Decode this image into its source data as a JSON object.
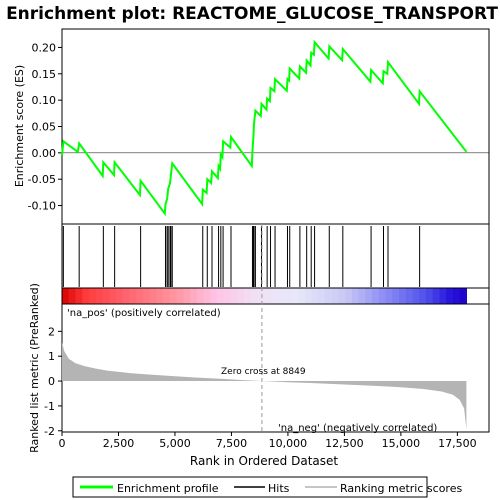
{
  "chart_data": {
    "type": "line",
    "title": "Enrichment plot: REACTOME_GLUCOSE_TRANSPORT",
    "top_panel": {
      "ylabel": "Enrichment score (ES)",
      "ylim": [
        -0.135,
        0.235
      ],
      "yticks": [
        -0.1,
        -0.05,
        0.0,
        0.05,
        0.1,
        0.15,
        0.2
      ],
      "ytick_labels": [
        "-0.10",
        "-0.05",
        "0.00",
        "0.05",
        "0.10",
        "0.15",
        "0.20"
      ],
      "line_color": "#00ff00",
      "es_points": [
        [
          0,
          -0.005
        ],
        [
          60,
          0.022
        ],
        [
          700,
          0.002
        ],
        [
          760,
          0.018
        ],
        [
          1800,
          -0.044
        ],
        [
          1830,
          -0.018
        ],
        [
          2300,
          -0.042
        ],
        [
          2330,
          -0.018
        ],
        [
          3450,
          -0.08
        ],
        [
          3480,
          -0.053
        ],
        [
          4550,
          -0.115
        ],
        [
          4580,
          -0.097
        ],
        [
          4650,
          -0.088
        ],
        [
          4700,
          -0.068
        ],
        [
          4780,
          -0.058
        ],
        [
          4820,
          -0.042
        ],
        [
          4880,
          -0.02
        ],
        [
          6200,
          -0.097
        ],
        [
          6230,
          -0.07
        ],
        [
          6400,
          -0.076
        ],
        [
          6430,
          -0.05
        ],
        [
          6600,
          -0.057
        ],
        [
          6640,
          -0.035
        ],
        [
          6900,
          -0.048
        ],
        [
          6930,
          -0.025
        ],
        [
          7000,
          -0.03
        ],
        [
          7030,
          -0.003
        ],
        [
          7100,
          -0.008
        ],
        [
          7130,
          0.022
        ],
        [
          7450,
          0.01
        ],
        [
          7480,
          0.03
        ],
        [
          8400,
          -0.025
        ],
        [
          8430,
          0.005
        ],
        [
          8470,
          0.03
        ],
        [
          8500,
          0.055
        ],
        [
          8560,
          0.08
        ],
        [
          8800,
          0.07
        ],
        [
          8830,
          0.093
        ],
        [
          9050,
          0.082
        ],
        [
          9080,
          0.103
        ],
        [
          9200,
          0.098
        ],
        [
          9230,
          0.123
        ],
        [
          9400,
          0.117
        ],
        [
          9430,
          0.14
        ],
        [
          9950,
          0.118
        ],
        [
          9980,
          0.14
        ],
        [
          10050,
          0.137
        ],
        [
          10080,
          0.16
        ],
        [
          10500,
          0.141
        ],
        [
          10530,
          0.164
        ],
        [
          10800,
          0.152
        ],
        [
          10830,
          0.175
        ],
        [
          11000,
          0.166
        ],
        [
          11030,
          0.19
        ],
        [
          11150,
          0.186
        ],
        [
          11180,
          0.21
        ],
        [
          11800,
          0.179
        ],
        [
          11830,
          0.202
        ],
        [
          12400,
          0.176
        ],
        [
          12430,
          0.197
        ],
        [
          13650,
          0.135
        ],
        [
          13680,
          0.157
        ],
        [
          14200,
          0.132
        ],
        [
          14230,
          0.155
        ],
        [
          14400,
          0.15
        ],
        [
          14430,
          0.172
        ],
        [
          15800,
          0.093
        ],
        [
          15830,
          0.117
        ],
        [
          17900,
          0.002
        ]
      ]
    },
    "hits": [
      60,
      760,
      1830,
      2330,
      3480,
      4580,
      4650,
      4700,
      4780,
      4820,
      4880,
      6230,
      6430,
      6640,
      6930,
      7030,
      7130,
      7480,
      8430,
      8470,
      8500,
      8560,
      8830,
      9080,
      9230,
      9430,
      9980,
      10080,
      10530,
      10830,
      11030,
      11180,
      11830,
      12430,
      13680,
      14230,
      14430,
      15830
    ],
    "bottom_panel": {
      "ylabel": "Ranked list metric (PreRanked)",
      "xlabel": "Rank in Ordered Dataset",
      "ylim": [
        -2.05,
        3.1
      ],
      "yticks": [
        -2,
        -1,
        0,
        1,
        2
      ],
      "ytick_labels": [
        "-2",
        "-1",
        "0",
        "1",
        "2"
      ],
      "xticks": [
        0,
        2500,
        5000,
        7500,
        10000,
        12500,
        15000,
        17500
      ],
      "xtick_labels": [
        "0",
        "2,500",
        "5,000",
        "7,500",
        "10,000",
        "12,500",
        "15,000",
        "17,500"
      ],
      "xlim": [
        0,
        18900
      ],
      "n_ranks": 17900,
      "zero_cross": 8849,
      "zero_cross_label": "Zero cross at 8849",
      "pos_label": "'na_pos' (positively correlated)",
      "neg_label": "'na_neg' (negatively correlated)",
      "pos_label_color": "#cc0000",
      "neg_label_color": "#0000cc",
      "metric_points": [
        [
          0,
          1.55
        ],
        [
          100,
          1.2
        ],
        [
          300,
          0.9
        ],
        [
          600,
          0.72
        ],
        [
          1000,
          0.6
        ],
        [
          1500,
          0.5
        ],
        [
          2000,
          0.42
        ],
        [
          3000,
          0.32
        ],
        [
          4000,
          0.25
        ],
        [
          5000,
          0.19
        ],
        [
          6000,
          0.14
        ],
        [
          7000,
          0.09
        ],
        [
          8000,
          0.04
        ],
        [
          8849,
          0.0
        ],
        [
          10000,
          -0.05
        ],
        [
          11000,
          -0.08
        ],
        [
          12000,
          -0.12
        ],
        [
          13000,
          -0.16
        ],
        [
          14000,
          -0.2
        ],
        [
          15000,
          -0.25
        ],
        [
          16000,
          -0.32
        ],
        [
          16800,
          -0.42
        ],
        [
          17300,
          -0.55
        ],
        [
          17600,
          -0.75
        ],
        [
          17800,
          -1.1
        ],
        [
          17900,
          -1.95
        ]
      ]
    },
    "legend": {
      "items": [
        "Enrichment profile",
        "Hits",
        "Ranking metric scores"
      ]
    }
  },
  "colors": {
    "es_line": "#00ff00",
    "hit_line": "#000000",
    "metric_fill": "#b4b4b4",
    "zero_cross_line": "#999999"
  }
}
